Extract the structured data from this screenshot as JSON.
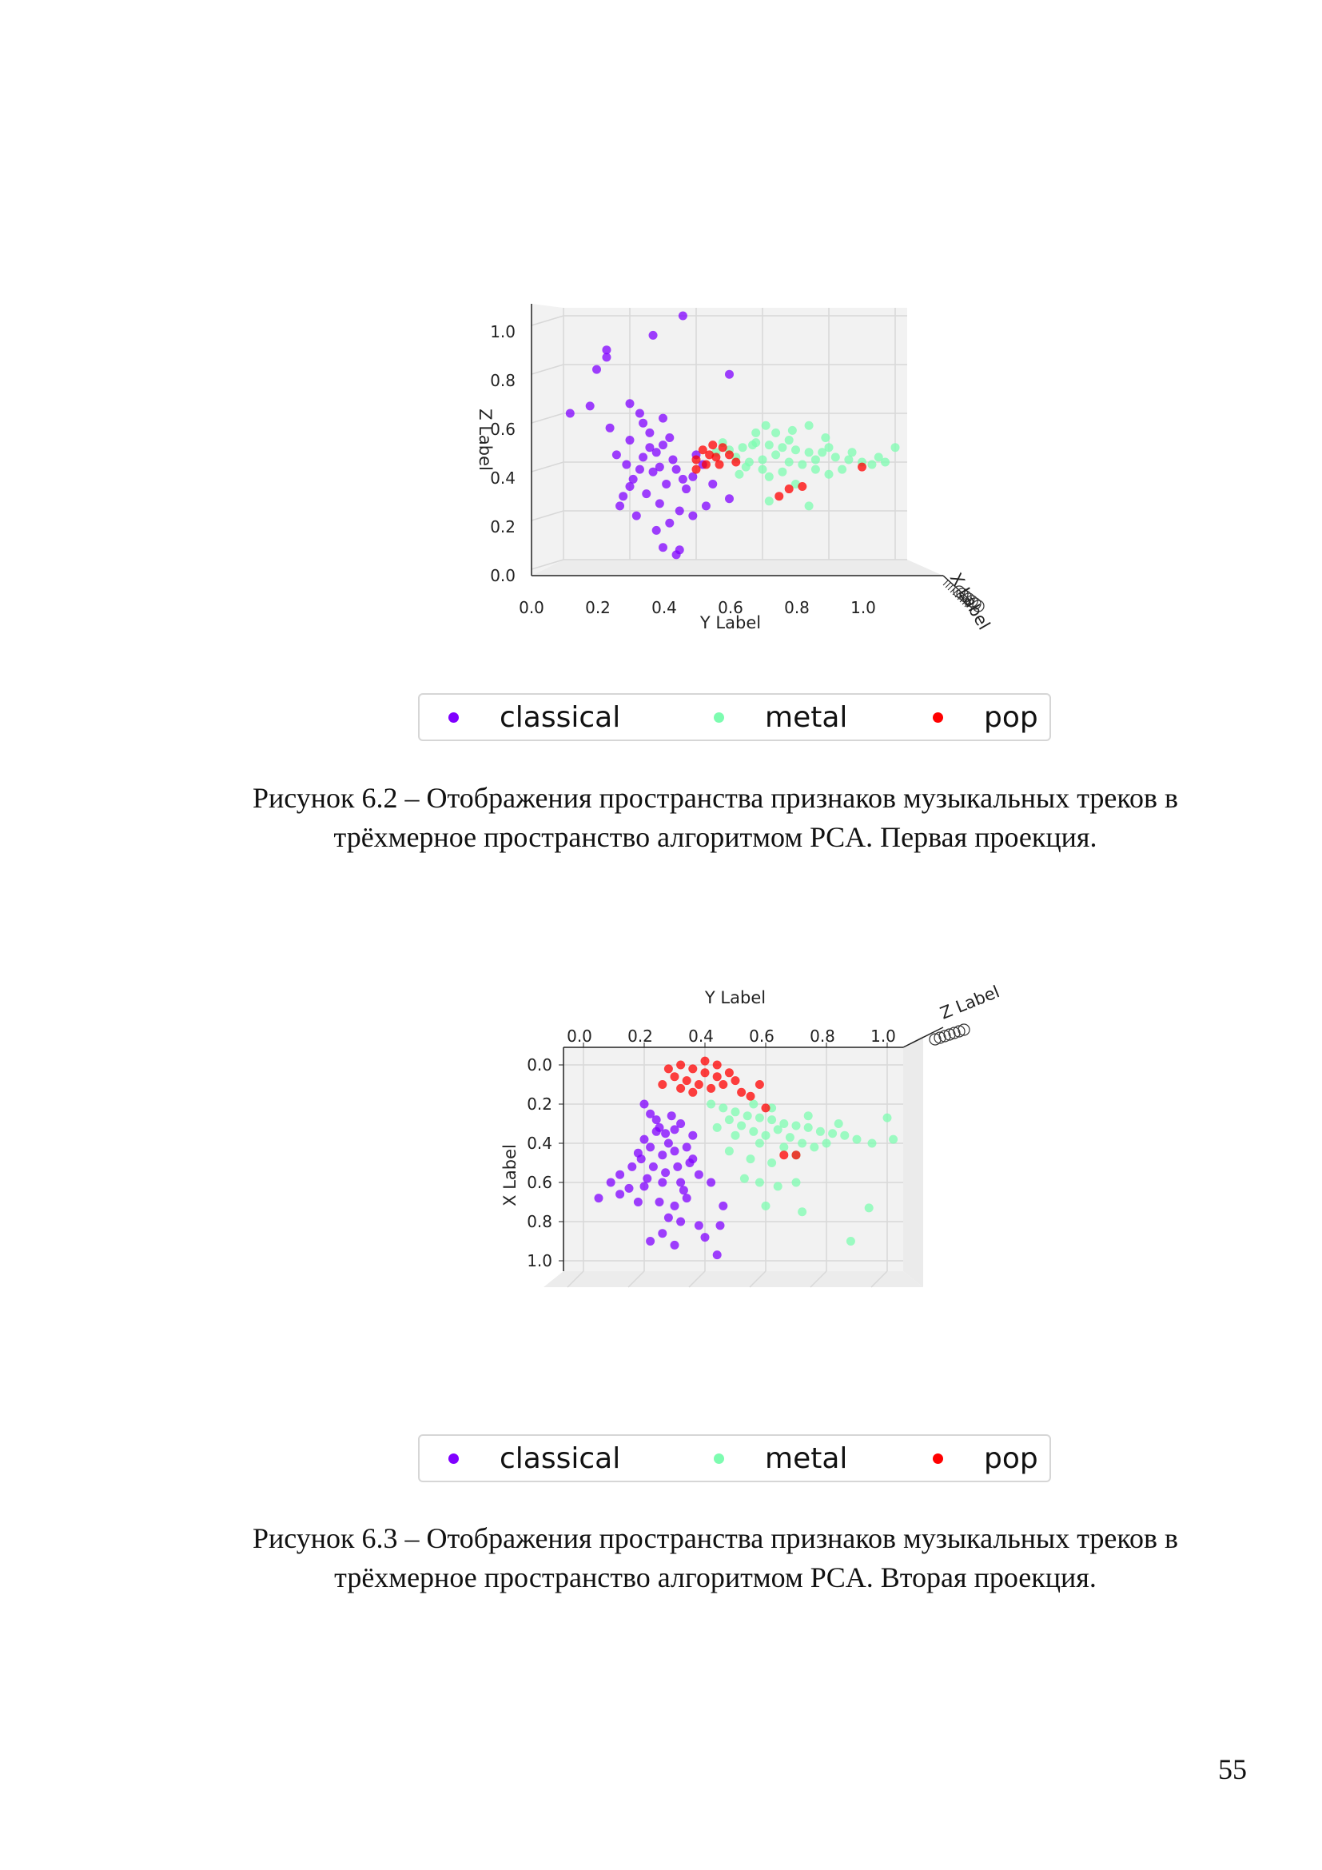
{
  "chart_data": [
    {
      "type": "scatter",
      "view": "3d-projection",
      "xlabel": "Y Label",
      "ylabel": "Z Label",
      "zlabel": "X Label",
      "x_ticks": [
        "0.0",
        "0.2",
        "0.4",
        "0.6",
        "0.8",
        "1.0"
      ],
      "y_ticks": [
        "0.0",
        "0.2",
        "0.4",
        "0.6",
        "0.8",
        "1.0"
      ],
      "xlim": [
        0,
        1
      ],
      "ylim": [
        0,
        1
      ],
      "grid": true,
      "series": [
        {
          "name": "classical",
          "color": "#8000ff",
          "points": [
            [
              0.36,
              1.0
            ],
            [
              0.27,
              0.92
            ],
            [
              0.13,
              0.86
            ],
            [
              0.13,
              0.83
            ],
            [
              0.1,
              0.78
            ],
            [
              0.5,
              0.76
            ],
            [
              0.08,
              0.63
            ],
            [
              0.02,
              0.6
            ],
            [
              0.2,
              0.64
            ],
            [
              0.23,
              0.6
            ],
            [
              0.3,
              0.58
            ],
            [
              0.26,
              0.52
            ],
            [
              0.2,
              0.49
            ],
            [
              0.3,
              0.47
            ],
            [
              0.28,
              0.44
            ],
            [
              0.33,
              0.41
            ],
            [
              0.24,
              0.42
            ],
            [
              0.19,
              0.39
            ],
            [
              0.34,
              0.37
            ],
            [
              0.27,
              0.36
            ],
            [
              0.21,
              0.33
            ],
            [
              0.31,
              0.31
            ],
            [
              0.37,
              0.29
            ],
            [
              0.25,
              0.27
            ],
            [
              0.18,
              0.26
            ],
            [
              0.29,
              0.23
            ],
            [
              0.35,
              0.2
            ],
            [
              0.22,
              0.18
            ],
            [
              0.32,
              0.15
            ],
            [
              0.28,
              0.12
            ],
            [
              0.35,
              0.04
            ],
            [
              0.34,
              0.02
            ],
            [
              0.4,
              0.43
            ],
            [
              0.42,
              0.39
            ],
            [
              0.39,
              0.34
            ],
            [
              0.26,
              0.46
            ],
            [
              0.16,
              0.43
            ],
            [
              0.23,
              0.37
            ],
            [
              0.45,
              0.31
            ],
            [
              0.5,
              0.25
            ],
            [
              0.17,
              0.22
            ],
            [
              0.39,
              0.18
            ],
            [
              0.3,
              0.05
            ],
            [
              0.14,
              0.54
            ],
            [
              0.24,
              0.56
            ],
            [
              0.32,
              0.5
            ],
            [
              0.29,
              0.38
            ],
            [
              0.36,
              0.33
            ],
            [
              0.2,
              0.3
            ],
            [
              0.43,
              0.22
            ]
          ]
        },
        {
          "name": "metal",
          "color": "#7dfcb0",
          "points": [
            [
              0.46,
              0.44
            ],
            [
              0.5,
              0.45
            ],
            [
              0.54,
              0.46
            ],
            [
              0.58,
              0.48
            ],
            [
              0.62,
              0.47
            ],
            [
              0.66,
              0.46
            ],
            [
              0.7,
              0.45
            ],
            [
              0.74,
              0.44
            ],
            [
              0.78,
              0.44
            ],
            [
              0.82,
              0.42
            ],
            [
              0.86,
              0.41
            ],
            [
              0.9,
              0.4
            ],
            [
              0.95,
              0.42
            ],
            [
              1.0,
              0.46
            ],
            [
              0.52,
              0.42
            ],
            [
              0.56,
              0.4
            ],
            [
              0.6,
              0.41
            ],
            [
              0.64,
              0.43
            ],
            [
              0.68,
              0.4
            ],
            [
              0.72,
              0.39
            ],
            [
              0.76,
              0.41
            ],
            [
              0.58,
              0.52
            ],
            [
              0.64,
              0.52
            ],
            [
              0.69,
              0.53
            ],
            [
              0.74,
              0.55
            ],
            [
              0.61,
              0.55
            ],
            [
              0.55,
              0.38
            ],
            [
              0.6,
              0.37
            ],
            [
              0.66,
              0.36
            ],
            [
              0.7,
              0.31
            ],
            [
              0.62,
              0.34
            ],
            [
              0.76,
              0.37
            ],
            [
              0.84,
              0.37
            ],
            [
              0.87,
              0.44
            ],
            [
              0.93,
              0.39
            ],
            [
              0.97,
              0.4
            ],
            [
              0.48,
              0.48
            ],
            [
              0.53,
              0.35
            ],
            [
              0.57,
              0.47
            ],
            [
              0.8,
              0.46
            ],
            [
              0.62,
              0.24
            ],
            [
              0.74,
              0.22
            ],
            [
              0.8,
              0.35
            ],
            [
              0.68,
              0.49
            ],
            [
              0.79,
              0.5
            ]
          ]
        },
        {
          "name": "pop",
          "color": "#ff0000",
          "points": [
            [
              0.42,
              0.45
            ],
            [
              0.44,
              0.43
            ],
            [
              0.46,
              0.42
            ],
            [
              0.48,
              0.46
            ],
            [
              0.4,
              0.41
            ],
            [
              0.5,
              0.43
            ],
            [
              0.43,
              0.39
            ],
            [
              0.47,
              0.39
            ],
            [
              0.9,
              0.38
            ],
            [
              0.68,
              0.29
            ],
            [
              0.72,
              0.3
            ],
            [
              0.65,
              0.26
            ],
            [
              0.52,
              0.4
            ],
            [
              0.45,
              0.47
            ],
            [
              0.4,
              0.37
            ]
          ]
        }
      ]
    },
    {
      "type": "scatter",
      "view": "3d-projection",
      "xlabel": "Y Label",
      "ylabel": "X Label",
      "zlabel": "Z Label",
      "x_ticks": [
        "0.0",
        "0.2",
        "0.4",
        "0.6",
        "0.8",
        "1.0"
      ],
      "y_ticks": [
        "0.0",
        "0.2",
        "0.4",
        "0.6",
        "0.8",
        "1.0"
      ],
      "xlim": [
        0,
        1
      ],
      "ylim": [
        0,
        1
      ],
      "y_inverted": true,
      "grid": true,
      "series": [
        {
          "name": "classical",
          "color": "#8000ff",
          "points": [
            [
              0.2,
              0.2
            ],
            [
              0.22,
              0.25
            ],
            [
              0.24,
              0.28
            ],
            [
              0.25,
              0.32
            ],
            [
              0.27,
              0.35
            ],
            [
              0.3,
              0.33
            ],
            [
              0.32,
              0.3
            ],
            [
              0.28,
              0.4
            ],
            [
              0.22,
              0.42
            ],
            [
              0.2,
              0.38
            ],
            [
              0.18,
              0.45
            ],
            [
              0.26,
              0.46
            ],
            [
              0.3,
              0.44
            ],
            [
              0.34,
              0.42
            ],
            [
              0.36,
              0.48
            ],
            [
              0.31,
              0.52
            ],
            [
              0.27,
              0.55
            ],
            [
              0.23,
              0.52
            ],
            [
              0.16,
              0.52
            ],
            [
              0.12,
              0.56
            ],
            [
              0.09,
              0.6
            ],
            [
              0.15,
              0.63
            ],
            [
              0.2,
              0.62
            ],
            [
              0.26,
              0.6
            ],
            [
              0.32,
              0.6
            ],
            [
              0.38,
              0.56
            ],
            [
              0.42,
              0.6
            ],
            [
              0.05,
              0.68
            ],
            [
              0.25,
              0.7
            ],
            [
              0.3,
              0.72
            ],
            [
              0.34,
              0.68
            ],
            [
              0.18,
              0.7
            ],
            [
              0.28,
              0.78
            ],
            [
              0.32,
              0.8
            ],
            [
              0.38,
              0.82
            ],
            [
              0.45,
              0.82
            ],
            [
              0.26,
              0.86
            ],
            [
              0.22,
              0.9
            ],
            [
              0.3,
              0.92
            ],
            [
              0.44,
              0.97
            ],
            [
              0.4,
              0.88
            ],
            [
              0.35,
              0.5
            ],
            [
              0.24,
              0.34
            ],
            [
              0.29,
              0.26
            ],
            [
              0.36,
              0.36
            ],
            [
              0.19,
              0.48
            ],
            [
              0.46,
              0.72
            ],
            [
              0.12,
              0.66
            ],
            [
              0.21,
              0.58
            ],
            [
              0.33,
              0.64
            ]
          ]
        },
        {
          "name": "metal",
          "color": "#7dfcb0",
          "points": [
            [
              0.42,
              0.2
            ],
            [
              0.46,
              0.22
            ],
            [
              0.5,
              0.24
            ],
            [
              0.54,
              0.26
            ],
            [
              0.58,
              0.27
            ],
            [
              0.62,
              0.28
            ],
            [
              0.66,
              0.3
            ],
            [
              0.7,
              0.31
            ],
            [
              0.74,
              0.32
            ],
            [
              0.78,
              0.34
            ],
            [
              0.82,
              0.35
            ],
            [
              0.86,
              0.36
            ],
            [
              0.9,
              0.38
            ],
            [
              0.95,
              0.4
            ],
            [
              1.02,
              0.38
            ],
            [
              1.0,
              0.27
            ],
            [
              0.48,
              0.28
            ],
            [
              0.52,
              0.31
            ],
            [
              0.56,
              0.34
            ],
            [
              0.6,
              0.36
            ],
            [
              0.64,
              0.33
            ],
            [
              0.68,
              0.37
            ],
            [
              0.72,
              0.4
            ],
            [
              0.76,
              0.42
            ],
            [
              0.8,
              0.4
            ],
            [
              0.44,
              0.32
            ],
            [
              0.5,
              0.36
            ],
            [
              0.58,
              0.4
            ],
            [
              0.66,
              0.42
            ],
            [
              0.7,
              0.46
            ],
            [
              0.62,
              0.5
            ],
            [
              0.55,
              0.48
            ],
            [
              0.48,
              0.44
            ],
            [
              0.53,
              0.58
            ],
            [
              0.58,
              0.6
            ],
            [
              0.64,
              0.62
            ],
            [
              0.7,
              0.6
            ],
            [
              0.6,
              0.72
            ],
            [
              0.72,
              0.75
            ],
            [
              0.94,
              0.73
            ],
            [
              0.88,
              0.9
            ],
            [
              0.56,
              0.2
            ],
            [
              0.62,
              0.22
            ],
            [
              0.74,
              0.26
            ],
            [
              0.84,
              0.3
            ]
          ]
        },
        {
          "name": "pop",
          "color": "#ff0000",
          "points": [
            [
              0.28,
              0.02
            ],
            [
              0.32,
              0.0
            ],
            [
              0.36,
              0.02
            ],
            [
              0.4,
              0.04
            ],
            [
              0.44,
              0.06
            ],
            [
              0.3,
              0.06
            ],
            [
              0.34,
              0.08
            ],
            [
              0.38,
              0.1
            ],
            [
              0.42,
              0.12
            ],
            [
              0.46,
              0.1
            ],
            [
              0.5,
              0.08
            ],
            [
              0.26,
              0.1
            ],
            [
              0.52,
              0.14
            ],
            [
              0.36,
              0.14
            ],
            [
              0.4,
              -0.02
            ],
            [
              0.48,
              0.04
            ],
            [
              0.55,
              0.16
            ],
            [
              0.58,
              0.1
            ],
            [
              0.6,
              0.22
            ],
            [
              0.66,
              0.46
            ],
            [
              0.7,
              0.46
            ],
            [
              0.32,
              0.12
            ],
            [
              0.44,
              0.0
            ]
          ]
        }
      ]
    }
  ],
  "figure1": {
    "ylabel": "Z Label",
    "xlabel": "Y Label",
    "zlabel": "X Label",
    "yticks": [
      "1.0",
      "0.8",
      "0.6",
      "0.4",
      "0.2",
      "0.0"
    ],
    "xticks": [
      "0.0",
      "0.2",
      "0.4",
      "0.6",
      "0.8",
      "1.0"
    ]
  },
  "figure2": {
    "ylabel": "X Label",
    "xlabel": "Y Label",
    "zlabel": "Z Label",
    "yticks": [
      "0.0",
      "0.2",
      "0.4",
      "0.6",
      "0.8",
      "1.0"
    ],
    "xticks": [
      "0.0",
      "0.2",
      "0.4",
      "0.6",
      "0.8",
      "1.0"
    ]
  },
  "legend1": {
    "items": [
      {
        "label": "classical",
        "color": "#8000ff"
      },
      {
        "label": "metal",
        "color": "#7dfcb0"
      },
      {
        "label": "pop",
        "color": "#ff0000"
      }
    ]
  },
  "legend2": {
    "items": [
      {
        "label": "classical",
        "color": "#8000ff"
      },
      {
        "label": "metal",
        "color": "#7dfcb0"
      },
      {
        "label": "pop",
        "color": "#ff0000"
      }
    ]
  },
  "caption1": {
    "line1": "Рисунок 6.2 – Отображения пространства признаков музыкальных треков в",
    "line2": "трёхмерное пространство алгоритмом PCA. Первая проекция."
  },
  "caption2": {
    "line1": "Рисунок 6.3 – Отображения пространства признаков музыкальных треков в",
    "line2": "трёхмерное пространство алгоритмом PCA. Вторая проекция."
  },
  "page_number": "55"
}
